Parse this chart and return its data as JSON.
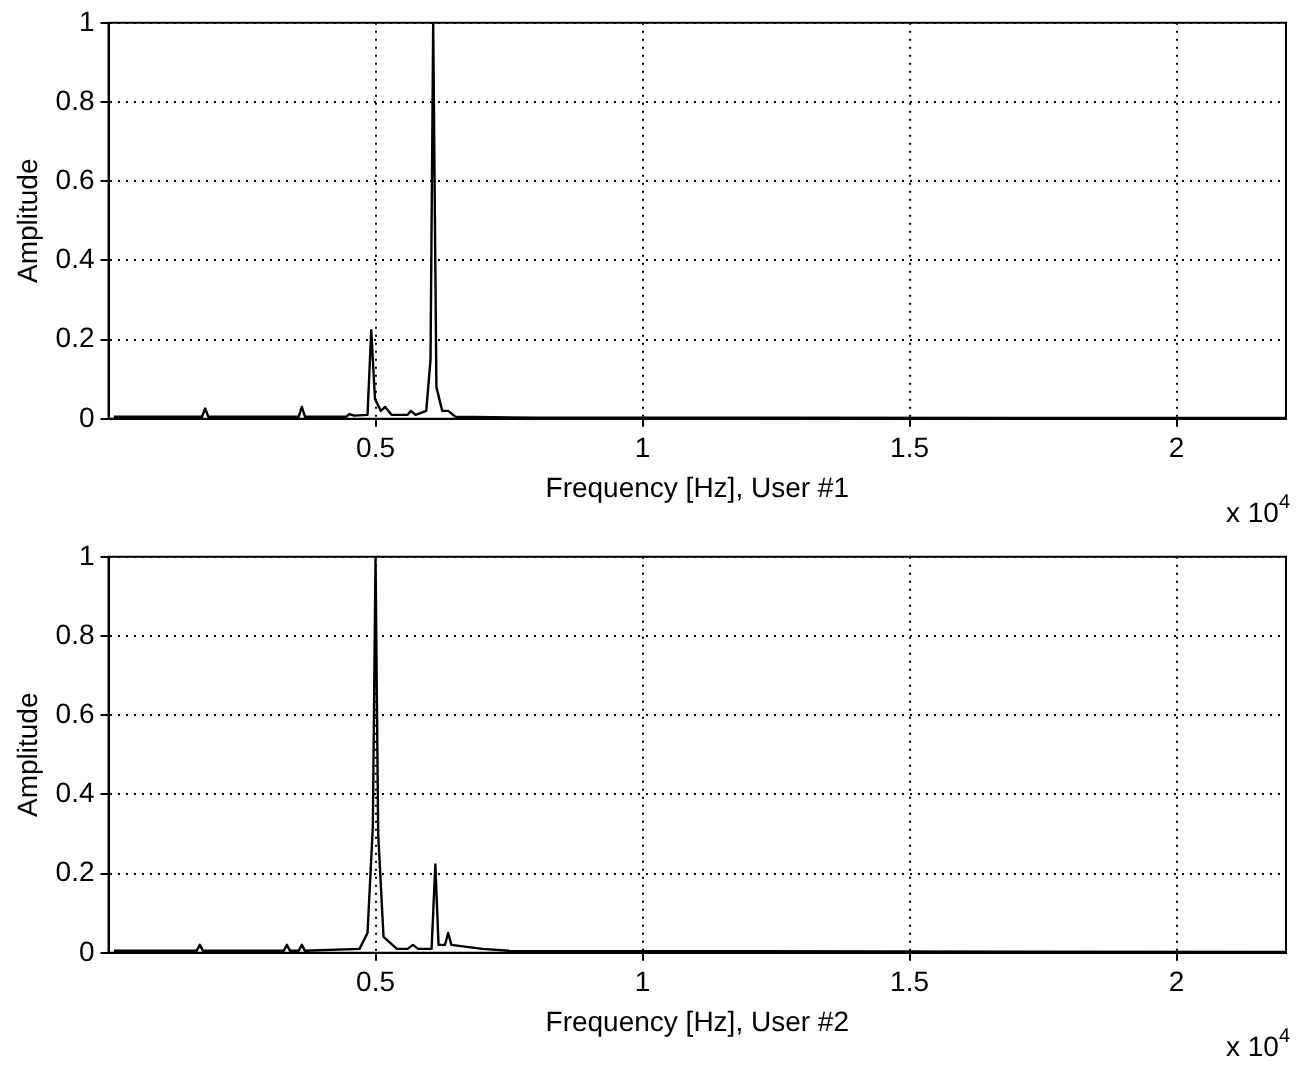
{
  "chart_data": [
    {
      "type": "line",
      "xlabel": "Frequency [Hz], User #1",
      "ylabel": "Amplitude",
      "annotations": [
        "x 10$^{4}$"
      ],
      "grid": true,
      "legend": false,
      "marker": "none",
      "line_style": "solid",
      "xlim": [
        0,
        2.205
      ],
      "xticks": [
        0.5,
        1,
        1.5,
        2
      ],
      "ylim": [
        0,
        1
      ],
      "yticks": [
        0,
        0.2,
        0.4,
        0.6,
        0.8,
        1
      ],
      "x": [
        0.01,
        0.175,
        0.181,
        0.187,
        0.356,
        0.362,
        0.368,
        0.445,
        0.451,
        0.46,
        0.485,
        0.492,
        0.499,
        0.51,
        0.518,
        0.53,
        0.56,
        0.566,
        0.575,
        0.595,
        0.603,
        0.608,
        0.614,
        0.625,
        0.636,
        0.65,
        0.8,
        2.205
      ],
      "series": [
        {
          "color": "#000000",
          "values": [
            0.005,
            0.005,
            0.026,
            0.005,
            0.005,
            0.03,
            0.005,
            0.005,
            0.012,
            0.008,
            0.01,
            0.224,
            0.05,
            0.02,
            0.03,
            0.01,
            0.01,
            0.02,
            0.01,
            0.02,
            0.15,
            1.0,
            0.08,
            0.02,
            0.02,
            0.005,
            0.003,
            0.002
          ]
        }
      ]
    },
    {
      "type": "line",
      "xlabel": "Frequency [Hz], User #2",
      "ylabel": "Amplitude",
      "annotations": [
        "x 10$^{4}$"
      ],
      "grid": true,
      "legend": false,
      "marker": "none",
      "line_style": "solid",
      "xlim": [
        0,
        2.205
      ],
      "xticks": [
        0.5,
        1,
        1.5,
        2
      ],
      "ylim": [
        0,
        1
      ],
      "yticks": [
        0,
        0.2,
        0.4,
        0.6,
        0.8,
        1
      ],
      "x": [
        0.01,
        0.165,
        0.171,
        0.177,
        0.328,
        0.334,
        0.34,
        0.356,
        0.362,
        0.368,
        0.47,
        0.485,
        0.495,
        0.5,
        0.505,
        0.515,
        0.54,
        0.56,
        0.57,
        0.58,
        0.605,
        0.612,
        0.618,
        0.63,
        0.636,
        0.642,
        0.7,
        0.75,
        2.205
      ],
      "series": [
        {
          "color": "#000000",
          "values": [
            0.005,
            0.005,
            0.02,
            0.005,
            0.005,
            0.02,
            0.005,
            0.005,
            0.02,
            0.005,
            0.01,
            0.05,
            0.32,
            1.0,
            0.3,
            0.04,
            0.01,
            0.01,
            0.02,
            0.01,
            0.01,
            0.223,
            0.02,
            0.02,
            0.05,
            0.02,
            0.01,
            0.005,
            0.002
          ]
        }
      ]
    }
  ]
}
